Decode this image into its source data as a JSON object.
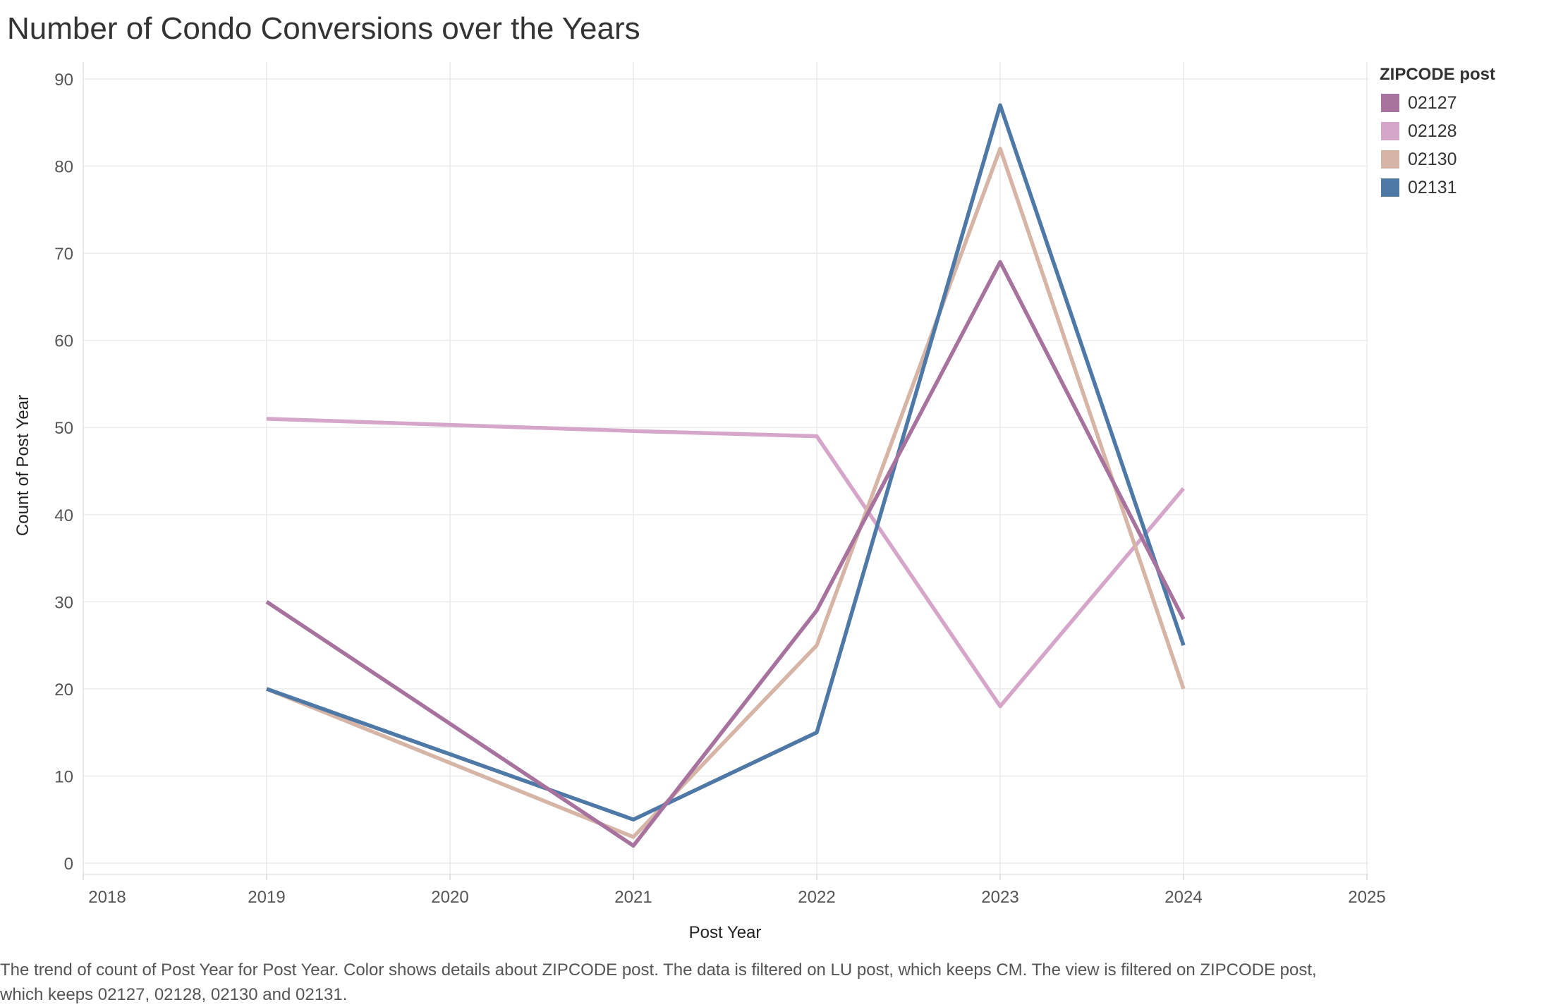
{
  "title": "Number of Condo Conversions over the Years",
  "caption": "The trend of count of Post Year for Post Year.  Color shows details about ZIPCODE post. The data is filtered on LU post, which keeps CM. The view is filtered on ZIPCODE post, which keeps 02127, 02128, 02130 and 02131.",
  "legend": {
    "title": "ZIPCODE post",
    "items": [
      {
        "label": "02127",
        "color": "#a7739e"
      },
      {
        "label": "02128",
        "color": "#d5a6ca"
      },
      {
        "label": "02130",
        "color": "#d7b5a6"
      },
      {
        "label": "02131",
        "color": "#4e79a7"
      }
    ]
  },
  "chart_data": {
    "type": "line",
    "xlabel": "Post Year",
    "ylabel": "Count of Post Year",
    "xlim": [
      2018,
      2025
    ],
    "ylim": [
      0,
      90
    ],
    "x_ticks": [
      2018,
      2019,
      2020,
      2021,
      2022,
      2023,
      2024,
      2025
    ],
    "y_ticks": [
      0,
      10,
      20,
      30,
      40,
      50,
      60,
      70,
      80,
      90
    ],
    "grid": true,
    "legend_position": "right",
    "series": [
      {
        "name": "02128",
        "color": "#d5a6ca",
        "x": [
          2019,
          2021,
          2022,
          2023,
          2024
        ],
        "y": [
          51,
          49.6,
          49,
          18,
          43
        ]
      },
      {
        "name": "02130",
        "color": "#d7b5a6",
        "x": [
          2019,
          2021,
          2022,
          2023,
          2024
        ],
        "y": [
          20,
          3,
          25,
          82,
          20
        ]
      },
      {
        "name": "02131",
        "color": "#4e79a7",
        "x": [
          2019,
          2021,
          2022,
          2023,
          2024
        ],
        "y": [
          20,
          5,
          15,
          87,
          25
        ]
      },
      {
        "name": "02127",
        "color": "#a7739e",
        "x": [
          2019,
          2021,
          2022,
          2023,
          2024
        ],
        "y": [
          30,
          2,
          29,
          69,
          28
        ]
      }
    ]
  }
}
